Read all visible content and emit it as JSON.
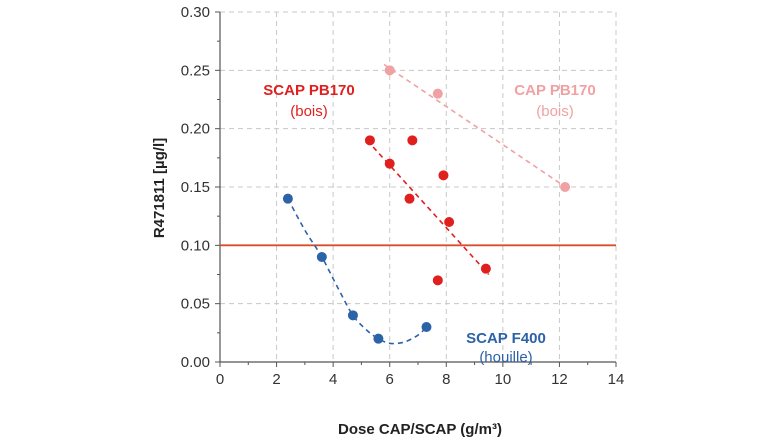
{
  "chart_data": {
    "type": "scatter",
    "xlabel": "Dose CAP/SCAP (g/m³)",
    "ylabel": "R471811 [µg/l]",
    "xlim": [
      0,
      14
    ],
    "ylim": [
      0,
      0.3
    ],
    "xticks": [
      0,
      2,
      4,
      6,
      8,
      10,
      12,
      14
    ],
    "yticks": [
      0.0,
      0.05,
      0.1,
      0.15,
      0.2,
      0.25,
      0.3
    ],
    "xtick_labels": [
      "0",
      "2",
      "4",
      "6",
      "8",
      "10",
      "12",
      "14"
    ],
    "ytick_labels": [
      "0.00",
      "0.05",
      "0.10",
      "0.15",
      "0.20",
      "0.25",
      "0.30"
    ],
    "grid": true,
    "threshold": {
      "value": 0.1,
      "color": "#d94f2b"
    },
    "series": [
      {
        "name": "SCAP F400",
        "subtitle": "(houille)",
        "color": "#2c62a8",
        "x": [
          2.4,
          3.6,
          4.7,
          5.6,
          7.3
        ],
        "y": [
          0.14,
          0.09,
          0.04,
          0.02,
          0.03
        ],
        "trend": {
          "type": "curve",
          "x": [
            2.4,
            3.0,
            3.6,
            4.2,
            4.7,
            5.2,
            5.6,
            6.0,
            6.5,
            7.0,
            7.3
          ],
          "y": [
            0.14,
            0.113,
            0.09,
            0.062,
            0.04,
            0.027,
            0.02,
            0.016,
            0.017,
            0.023,
            0.03
          ]
        }
      },
      {
        "name": "SCAP PB170",
        "subtitle": "(bois)",
        "color": "#e0201f",
        "x": [
          5.3,
          6.0,
          6.7,
          6.8,
          7.7,
          7.9,
          8.1,
          9.4
        ],
        "y": [
          0.19,
          0.17,
          0.14,
          0.19,
          0.07,
          0.16,
          0.12,
          0.08
        ],
        "trend": {
          "type": "line",
          "x": [
            5.2,
            9.5
          ],
          "y": [
            0.19,
            0.075
          ]
        }
      },
      {
        "name": "CAP PB170",
        "subtitle": "(bois)",
        "color": "#f0a1a3",
        "x": [
          6.0,
          7.7,
          12.2
        ],
        "y": [
          0.25,
          0.23,
          0.15
        ],
        "trend": {
          "type": "line",
          "x": [
            5.8,
            12.4
          ],
          "y": [
            0.255,
            0.147
          ]
        }
      }
    ]
  }
}
